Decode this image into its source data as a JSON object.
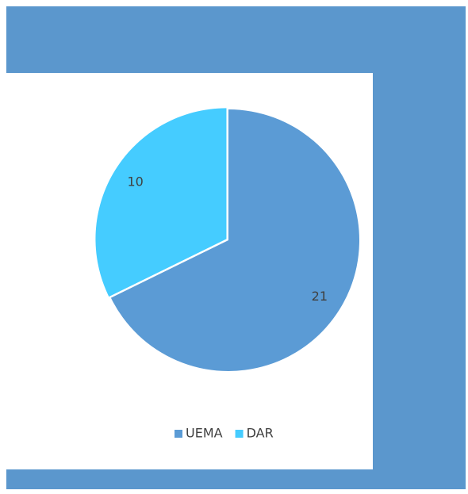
{
  "chart_data": {
    "type": "pie",
    "categories": [
      "UEMA",
      "DAR"
    ],
    "values": [
      21,
      10
    ],
    "colors": [
      "#5b9bd5",
      "#45ccff"
    ],
    "legend": "bottom"
  }
}
